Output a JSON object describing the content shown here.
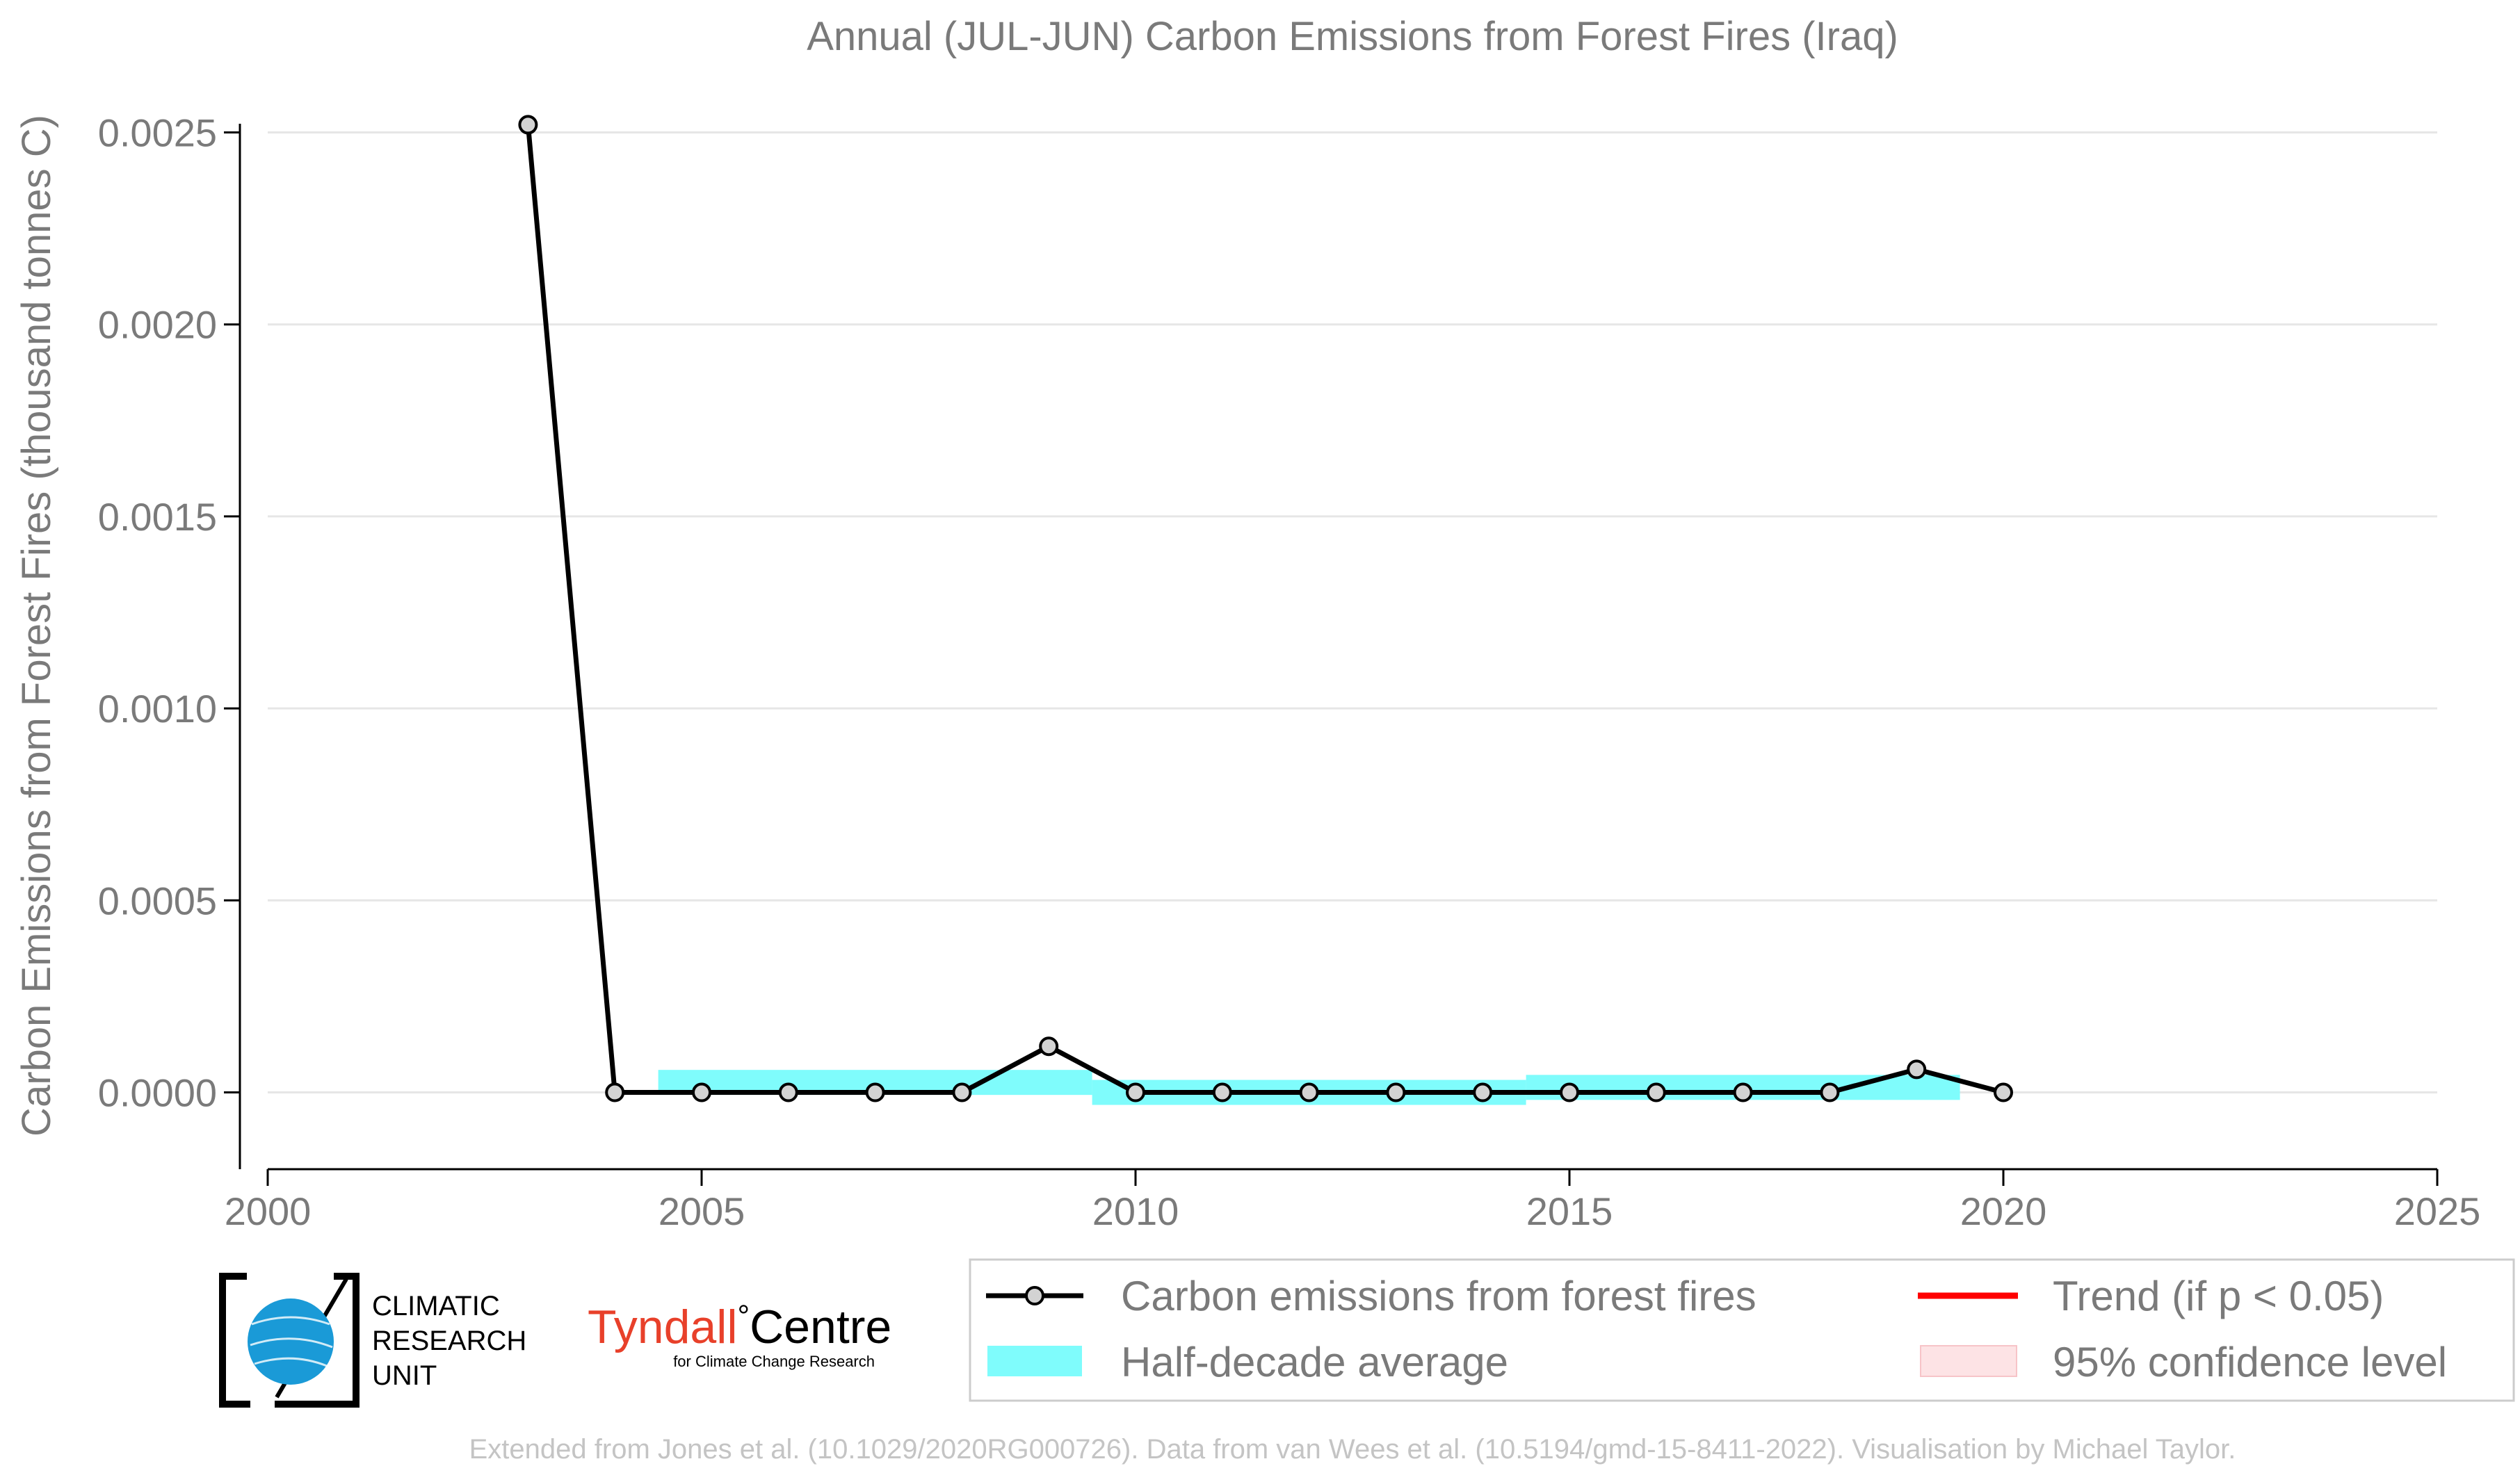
{
  "chart_data": {
    "type": "line",
    "title": "Annual (JUL-JUN) Carbon Emissions from Forest Fires (Iraq)",
    "xlabel": "",
    "ylabel": "Carbon Emissions from Forest Fires (thousand tonnes C)",
    "xlim": [
      2000,
      2025
    ],
    "ylim": [
      -0.0002,
      0.0027
    ],
    "x_ticks": [
      2000,
      2005,
      2010,
      2015,
      2020,
      2025
    ],
    "x_tick_labels": [
      "2000",
      "2005",
      "2010",
      "2015",
      "2020",
      "2025"
    ],
    "y_ticks": [
      0,
      0.0005,
      0.001,
      0.0015,
      0.002,
      0.0025
    ],
    "y_tick_labels": [
      "0.0000",
      "0.0005",
      "0.0010",
      "0.0015",
      "0.0020",
      "0.0025"
    ],
    "grid": "horizontal",
    "series": [
      {
        "name": "Carbon emissions from forest fires",
        "color": "#000000",
        "x": [
          2003,
          2004,
          2005,
          2006,
          2007,
          2008,
          2009,
          2010,
          2011,
          2012,
          2013,
          2014,
          2015,
          2016,
          2017,
          2018,
          2019,
          2020
        ],
        "y": [
          0.00252,
          0,
          0,
          0,
          0,
          0,
          0.00012,
          0,
          0,
          0,
          0,
          0,
          0,
          0,
          0,
          0,
          6e-05,
          0
        ]
      }
    ],
    "half_decade_average": {
      "name": "Half-decade average",
      "color": "#7ffcfc",
      "bands": [
        {
          "x0": 2004.5,
          "x1": 2009.5,
          "y": 2.6e-05
        },
        {
          "x0": 2009.5,
          "x1": 2014.5,
          "y": 0.0
        },
        {
          "x0": 2014.5,
          "x1": 2019.5,
          "y": 1.3e-05
        }
      ]
    },
    "legend": {
      "placement": "bottom-right",
      "entries": [
        {
          "label": "Carbon emissions from forest fires",
          "kind": "line-marker",
          "color": "#000000"
        },
        {
          "label": "Trend (if p < 0.05)",
          "kind": "line",
          "color": "#ff0000"
        },
        {
          "label": "Half-decade average",
          "kind": "patch",
          "color": "#7ffcfc"
        },
        {
          "label": "95% confidence level",
          "kind": "patch",
          "color": "#fde3e5"
        }
      ]
    }
  },
  "logos": {
    "cru_line1": "CLIMATIC",
    "cru_line2": "RESEARCH",
    "cru_line3": "UNIT",
    "tyndall_name": "Tyndall",
    "tyndall_degree": "°",
    "tyndall_centre": "Centre",
    "tyndall_sub": "for Climate Change Research"
  },
  "footer": "Extended from Jones et al. (10.1029/2020RG000726). Data from van Wees et al. (10.5194/gmd-15-8411-2022). Visualisation by Michael Taylor."
}
